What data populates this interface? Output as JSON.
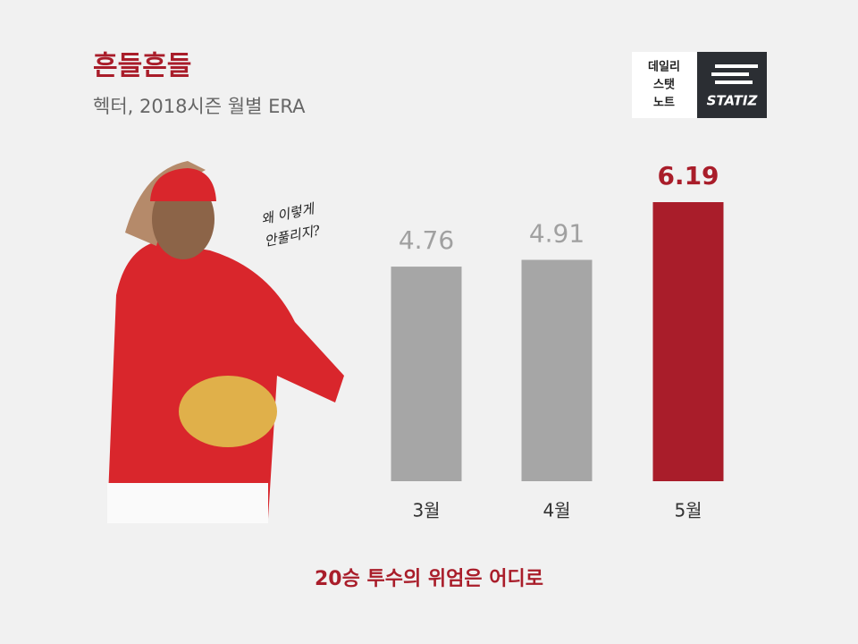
{
  "chart_data": {
    "type": "bar",
    "title": "흔들흔들",
    "subtitle": "헥터, 2018시즌 월별 ERA",
    "categories": [
      "3월",
      "4월",
      "5월"
    ],
    "values": [
      4.76,
      4.91,
      6.19
    ],
    "colors": [
      "#a6a6a6",
      "#a6a6a6",
      "#a91d2a"
    ],
    "annotation": "20승 투수의 위엄은 어디로",
    "note": [
      "왜 이렇게",
      "안풀리지?"
    ]
  },
  "logo": {
    "lines": [
      "데일리",
      "스탯",
      "노트"
    ],
    "brand": "STATIZ"
  }
}
